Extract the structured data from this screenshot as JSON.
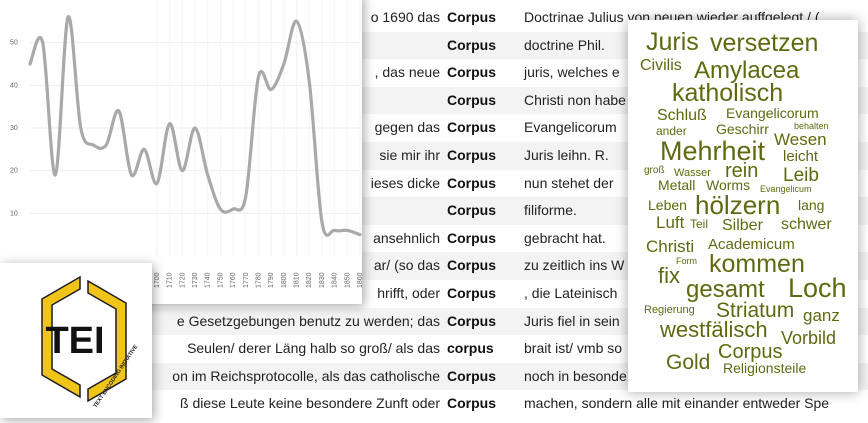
{
  "kwic": {
    "rows": [
      {
        "left": "o 1690 das",
        "keyword": "Corpus",
        "right": "Doctrinae Julius von neuen wieder auffgelegt / ("
      },
      {
        "left": "",
        "keyword": "Corpus",
        "right": "doctrine Phil."
      },
      {
        "left": ", das neue",
        "keyword": "Corpus",
        "right": "juris, welches e"
      },
      {
        "left": "",
        "keyword": "Corpus",
        "right": "Christi non habe"
      },
      {
        "left": "gegen das",
        "keyword": "Corpus",
        "right": "Evangelicorum"
      },
      {
        "left": "sie mir ihr",
        "keyword": "Corpus",
        "right": "Juris leihn. R."
      },
      {
        "left": "ieses dicke",
        "keyword": "Corpus",
        "right": "nun stehet der"
      },
      {
        "left": "",
        "keyword": "Corpus",
        "right": "filiforme."
      },
      {
        "left": "ansehnlich",
        "keyword": "Corpus",
        "right": "gebracht hat."
      },
      {
        "left": "ar/ (so das",
        "keyword": "Corpus",
        "right": "zu zeitlich ins W"
      },
      {
        "left": "hrifft, oder",
        "keyword": "Corpus",
        "right": ", die Lateinisch"
      },
      {
        "left": "e Gesetzgebungen benutz zu werden; das",
        "keyword": "Corpus",
        "right": "Juris fiel in sein"
      },
      {
        "left": "Seulen/ derer Läng halb so groß/ als das",
        "keyword": "corpus",
        "right": "brait ist/ vmb so"
      },
      {
        "left": "on im Reichsprotocolle, als das catholische",
        "keyword": "Corpus",
        "right": "noch in besonde"
      },
      {
        "left": "ß diese Leute keine besondere Zunft oder",
        "keyword": "Corpus",
        "right": "machen, sondern alle mit einander entweder Spe"
      }
    ]
  },
  "chart_data": {
    "type": "line",
    "title": "",
    "xlabel": "",
    "ylabel": "",
    "x": [
      1600,
      1610,
      1620,
      1630,
      1640,
      1650,
      1660,
      1670,
      1680,
      1690,
      1700,
      1710,
      1720,
      1730,
      1740,
      1750,
      1760,
      1770,
      1780,
      1790,
      1800,
      1810,
      1820,
      1830,
      1840,
      1850,
      1860
    ],
    "values": [
      45,
      50,
      19,
      56,
      30,
      26,
      26,
      34,
      19,
      25,
      17,
      31,
      20,
      30,
      19,
      11,
      11,
      14,
      42,
      39,
      45,
      55,
      41,
      8,
      6,
      6,
      5
    ],
    "ylim": [
      0,
      60
    ],
    "yticks": [
      "10",
      "20",
      "30",
      "40",
      "50"
    ],
    "xtick_labels": [
      "1700",
      "1710",
      "1720",
      "1730",
      "1740",
      "1750",
      "1760",
      "1770",
      "1780",
      "1790",
      "1800",
      "1810",
      "1820",
      "1830",
      "1840",
      "1850",
      "1860"
    ],
    "line_color": "#a9a9a9",
    "grid": true
  },
  "logo": {
    "text": "TEI",
    "subtitle": "TEXT ENCODING INITIATIVE",
    "accent": "#f0c419"
  },
  "word_cloud": {
    "color": "#5f6a10",
    "words": [
      "Juris",
      "versetzen",
      "Civilis",
      "Amylacea",
      "katholisch",
      "Schluß",
      "Evangelicorum",
      "ander",
      "Geschirr",
      "behalten",
      "Wesen",
      "Mehrheit",
      "leicht",
      "groß",
      "Wasser",
      "rein",
      "Leib",
      "Metall",
      "Worms",
      "Evangelicum",
      "Leben",
      "hölzern",
      "lang",
      "Luft",
      "Teil",
      "Silber",
      "schwer",
      "Christi",
      "Academicum",
      "Form",
      "fix",
      "kommen",
      "gesamt",
      "Loch",
      "Regierung",
      "Striatum",
      "ganz",
      "westfälisch",
      "Vorbild",
      "Corpus",
      "Gold",
      "Religionsteile"
    ]
  }
}
